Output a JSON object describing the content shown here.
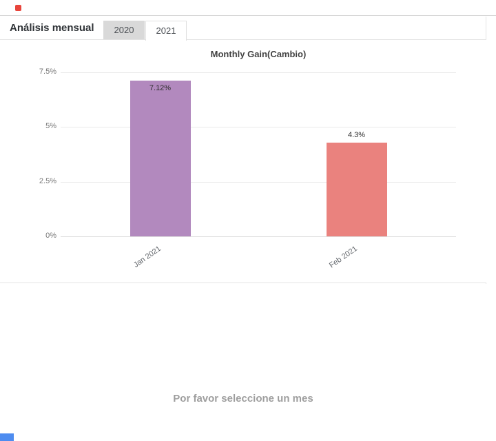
{
  "header": {
    "section_label": "Análisis mensual",
    "tabs": [
      {
        "label": "2020",
        "active": false
      },
      {
        "label": "2021",
        "active": true
      }
    ]
  },
  "chart_data": {
    "type": "bar",
    "title": "Monthly Gain(Cambio)",
    "categories": [
      "Jan 2021",
      "Feb 2021"
    ],
    "values": [
      7.12,
      4.3
    ],
    "value_labels": [
      "7.12%",
      "4.3%"
    ],
    "bar_colors": [
      "#b289be",
      "#ea827e"
    ],
    "ylim": [
      0,
      7.5
    ],
    "y_ticks": [
      7.5,
      5,
      2.5,
      0
    ],
    "y_tick_labels": [
      "7.5%",
      "5%",
      "2.5%",
      "0%"
    ],
    "xlabel": "",
    "ylabel": "",
    "grid": true,
    "legend": "none"
  },
  "empty_state": {
    "message": "Por favor seleccione un mes"
  },
  "colors": {
    "marker_red": "#e8453c",
    "marker_blue": "#4e8cf0",
    "tab_inactive_bg": "#d9d9d9"
  }
}
